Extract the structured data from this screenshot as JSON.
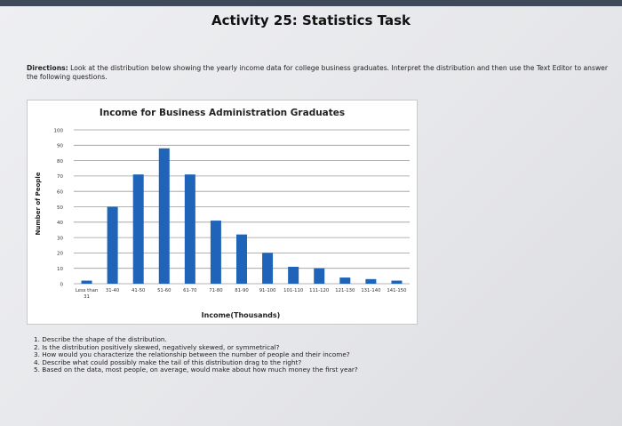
{
  "page": {
    "title": "Activity 25: Statistics Task",
    "directions_label": "Directions:",
    "directions_text": "Look at the distribution below showing the yearly income data for college business graduates. Interpret the distribution and then use the Text Editor to answer the following questions."
  },
  "chart_data": {
    "type": "bar",
    "title": "Income for Business Administration Graduates",
    "xlabel": "Income(Thousands)",
    "ylabel": "Number of People",
    "ylim": [
      0,
      100
    ],
    "yticks": [
      0,
      10,
      20,
      30,
      40,
      50,
      60,
      70,
      80,
      90,
      100
    ],
    "grid": true,
    "categories": [
      [
        "Less than",
        "31"
      ],
      [
        "31-40"
      ],
      [
        "41-50"
      ],
      [
        "51-60"
      ],
      [
        "61-70"
      ],
      [
        "71-80"
      ],
      [
        "81-90"
      ],
      [
        "91-100"
      ],
      [
        "101-110"
      ],
      [
        "111-120"
      ],
      [
        "121-130"
      ],
      [
        "131-140"
      ],
      [
        "141-150"
      ]
    ],
    "values": [
      2,
      50,
      71,
      88,
      71,
      41,
      32,
      20,
      11,
      10,
      4,
      3,
      2
    ],
    "bar_color": "#1f64b8"
  },
  "questions": [
    "1. Describe the shape of the distribution.",
    "2. Is the distribution positively skewed, negatively skewed, or symmetrical?",
    "3. How would you characterize the relationship between the number of people and their income?",
    "4. Describe what could possibly make the tail of this distribution drag to the right?",
    "5. Based on the data, most people, on average, would make about how much money the first year?"
  ]
}
